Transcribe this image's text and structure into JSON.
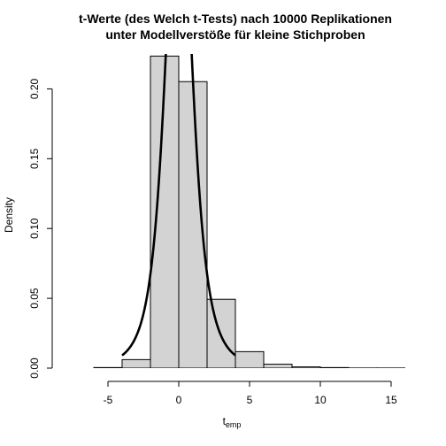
{
  "chart_data": {
    "type": "bar",
    "title": [
      "t-Werte (des Welch t-Tests) nach 10000 Replikationen",
      "unter Modellverstöße für kleine Stichproben"
    ],
    "xlabel": "t",
    "xlabel_sub": "emp",
    "ylabel": "Density",
    "xlim": [
      -8,
      16
    ],
    "ylim": [
      0,
      0.225
    ],
    "x_ticks": [
      -5,
      0,
      5,
      10,
      15
    ],
    "x_tick_labels": [
      "-5",
      "0",
      "5",
      "10",
      "15"
    ],
    "y_ticks": [
      0.0,
      0.05,
      0.1,
      0.15,
      0.2
    ],
    "y_tick_labels": [
      "0.00",
      "0.05",
      "0.10",
      "0.15",
      "0.20"
    ],
    "histogram": {
      "bins": [
        {
          "x0": -6,
          "x1": -4,
          "density": 0.0004
        },
        {
          "x0": -4,
          "x1": -2,
          "density": 0.0061
        },
        {
          "x0": -2,
          "x1": 0,
          "density": 0.2235
        },
        {
          "x0": 0,
          "x1": 2,
          "density": 0.2052
        },
        {
          "x0": 2,
          "x1": 4,
          "density": 0.0493
        },
        {
          "x0": 4,
          "x1": 6,
          "density": 0.0118
        },
        {
          "x0": 6,
          "x1": 8,
          "density": 0.0028
        },
        {
          "x0": 8,
          "x1": 10,
          "density": 0.0009
        },
        {
          "x0": 10,
          "x1": 12,
          "density": 0.0004
        },
        {
          "x0": 12,
          "x1": 14,
          "density": 0.0001
        },
        {
          "x0": 14,
          "x1": 16,
          "density": 0.0001
        }
      ],
      "fill": "#d3d3d3",
      "stroke": "#000000"
    },
    "density_curve": {
      "type": "line",
      "distribution": "t",
      "df": 3,
      "x_range": [
        -4,
        4
      ],
      "color": "#000000"
    },
    "grid": false
  }
}
